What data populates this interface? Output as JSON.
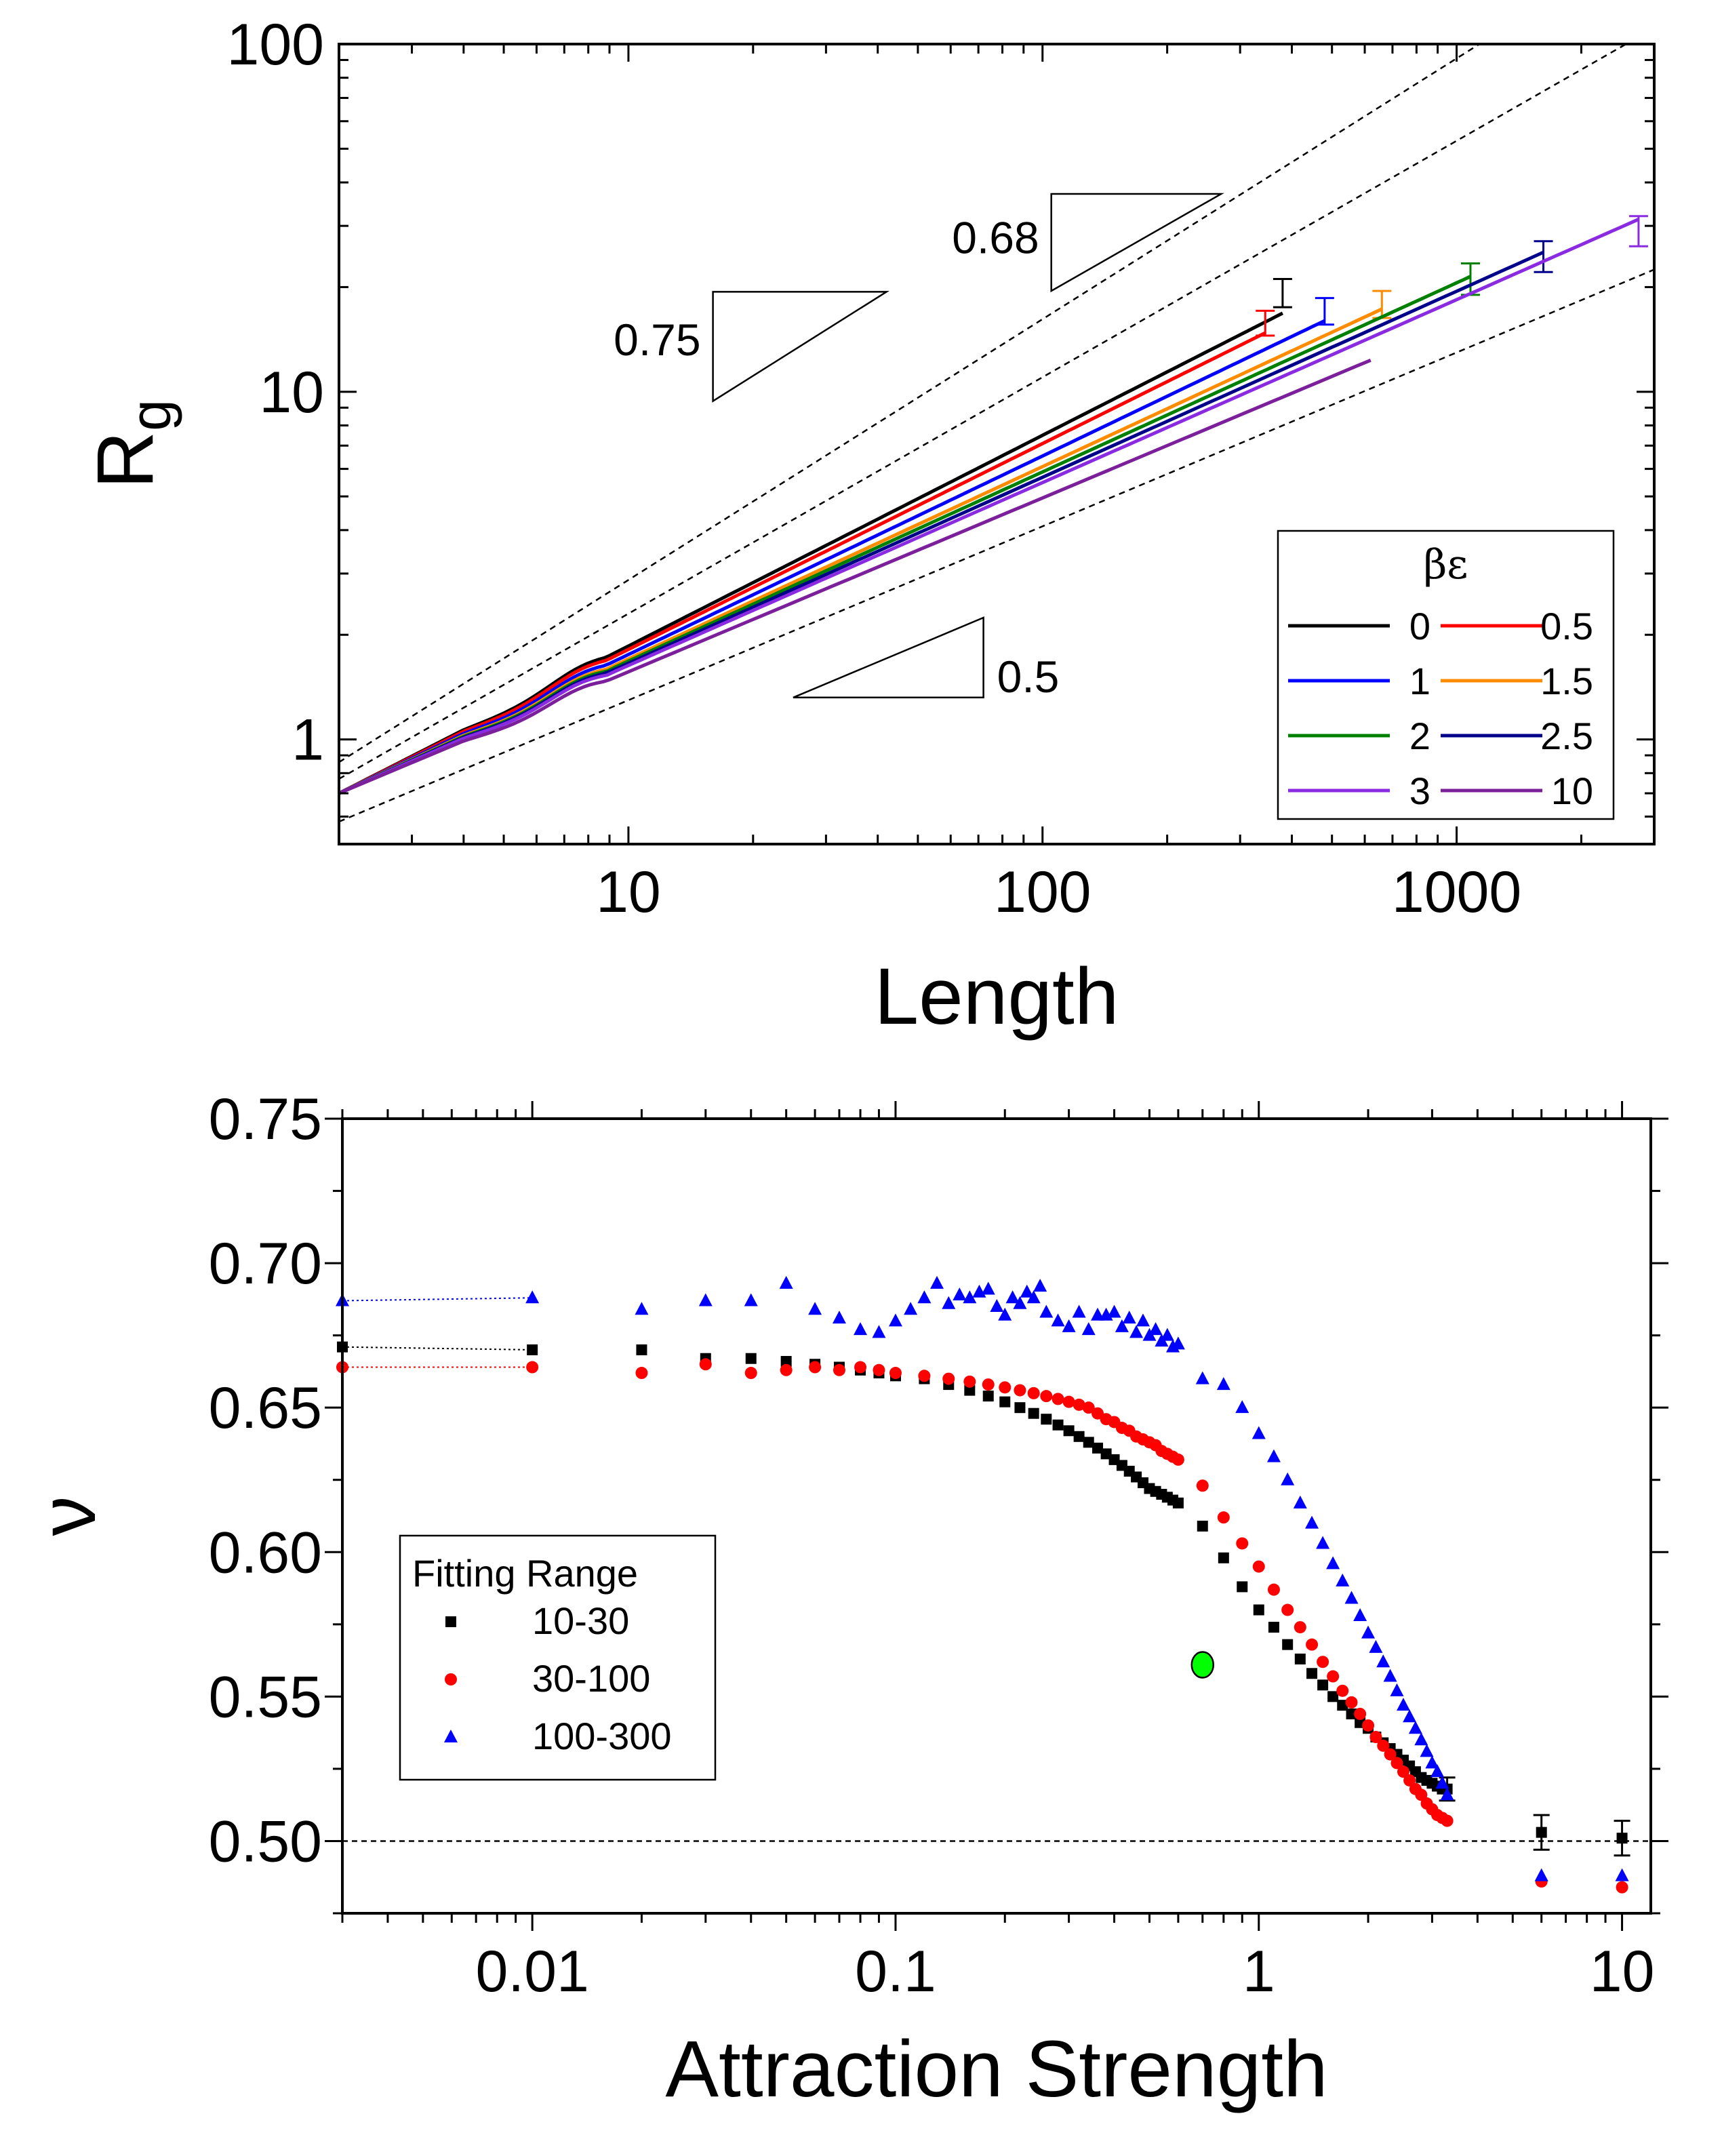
{
  "chart_data": [
    {
      "type": "line",
      "id": "rg-vs-length",
      "title": "",
      "xlabel": "Length",
      "ylabel_main": "R",
      "ylabel_sub": "g",
      "xscale": "log",
      "yscale": "log",
      "xlim": [
        2,
        3000
      ],
      "ylim": [
        0.5,
        100
      ],
      "xticks": [
        {
          "value": 10,
          "label": "10"
        },
        {
          "value": 100,
          "label": "100"
        },
        {
          "value": 1000,
          "label": "1000"
        }
      ],
      "yticks": [
        {
          "value": 1,
          "label": "1"
        },
        {
          "value": 10,
          "label": "10"
        },
        {
          "value": 100,
          "label": "100"
        }
      ],
      "legend": {
        "title": "βε",
        "position": "lower-right",
        "columns": 2
      },
      "series": [
        {
          "name": "0",
          "color": "#000000",
          "x0": 2,
          "y0": 0.7,
          "exponent": 0.606,
          "xmax": 380,
          "ex": 380,
          "ey": 19.3,
          "err": 1.8
        },
        {
          "name": "0.5",
          "color": "#ff0000",
          "x0": 2,
          "y0": 0.7,
          "exponent": 0.592,
          "xmax": 345,
          "ex": 345,
          "ey": 15.8,
          "err": 1.3
        },
        {
          "name": "1",
          "color": "#0000ff",
          "x0": 2,
          "y0": 0.7,
          "exponent": 0.571,
          "xmax": 480,
          "ex": 480,
          "ey": 17.1,
          "err": 1.5
        },
        {
          "name": "1.5",
          "color": "#ff8c00",
          "x0": 2,
          "y0": 0.7,
          "exponent": 0.553,
          "xmax": 660,
          "ex": 660,
          "ey": 17.9,
          "err": 1.6
        },
        {
          "name": "2",
          "color": "#008000",
          "x0": 2,
          "y0": 0.7,
          "exponent": 0.544,
          "xmax": 1080,
          "ex": 1080,
          "ey": 21.2,
          "err": 2.2
        },
        {
          "name": "2.5",
          "color": "#00008b",
          "x0": 2,
          "y0": 0.7,
          "exponent": 0.535,
          "xmax": 1620,
          "ex": 1620,
          "ey": 24.6,
          "err": 2.5
        },
        {
          "name": "3",
          "color": "#8a2be2",
          "x0": 2,
          "y0": 0.7,
          "exponent": 0.526,
          "xmax": 2750,
          "ex": 2750,
          "ey": 29.1,
          "err": 2.9
        },
        {
          "name": "10",
          "color": "#7b1f9b",
          "x0": 2,
          "y0": 0.7,
          "exponent": 0.5,
          "xmax": 620,
          "ex": null,
          "ey": null,
          "err": null
        }
      ],
      "reference_lines": [
        {
          "exponent": 0.75,
          "x0": 2,
          "y0": 0.86
        },
        {
          "exponent": 0.68,
          "x0": 2,
          "y0": 0.77
        },
        {
          "exponent": 0.5,
          "x0": 2,
          "y0": 0.58
        }
      ],
      "slope_triangles": [
        {
          "label": "0.75",
          "exponent": 0.75,
          "x_left": 16,
          "x_right": 42,
          "y_base": 9.4,
          "vertical": "left",
          "label_side": "left"
        },
        {
          "label": "0.68",
          "exponent": 0.68,
          "x_left": 105,
          "x_right": 270,
          "y_base": 19.5,
          "vertical": "left",
          "label_side": "left"
        },
        {
          "label": "0.5",
          "exponent": 0.5,
          "x_left": 25,
          "x_right": 72,
          "y_base": 1.32,
          "vertical": "right",
          "label_side": "right"
        }
      ]
    },
    {
      "type": "scatter",
      "id": "nu-vs-attraction",
      "title": "",
      "xlabel": "Attraction Strength",
      "ylabel": "ν",
      "xscale": "log",
      "yscale": "linear",
      "xlim": [
        0.003,
        12
      ],
      "ylim": [
        0.475,
        0.75
      ],
      "xticks": [
        {
          "value": 0.01,
          "label": "0.01"
        },
        {
          "value": 0.1,
          "label": "0.1"
        },
        {
          "value": 1,
          "label": "1"
        },
        {
          "value": 10,
          "label": "10"
        }
      ],
      "yticks": [
        {
          "value": 0.5,
          "label": "0.50"
        },
        {
          "value": 0.55,
          "label": "0.55"
        },
        {
          "value": 0.6,
          "label": "0.60"
        },
        {
          "value": 0.65,
          "label": "0.65"
        },
        {
          "value": 0.7,
          "label": "0.70"
        },
        {
          "value": 0.75,
          "label": "0.75"
        }
      ],
      "reference_hline": 0.5,
      "legend": {
        "title": "Fitting Range",
        "position": "lower-left"
      },
      "series": [
        {
          "name": "10-30",
          "marker": "square",
          "color": "#000000",
          "x": [
            0.003,
            0.01,
            0.02,
            0.03,
            0.04,
            0.05,
            0.06,
            0.07,
            0.08,
            0.09,
            0.1,
            0.12,
            0.14,
            0.16,
            0.18,
            0.2,
            0.22,
            0.24,
            0.26,
            0.28,
            0.3,
            0.32,
            0.34,
            0.36,
            0.38,
            0.4,
            0.42,
            0.44,
            0.46,
            0.48,
            0.5,
            0.52,
            0.54,
            0.56,
            0.58,
            0.6,
            0.7,
            0.8,
            0.9,
            1.0,
            1.1,
            1.2,
            1.3,
            1.4,
            1.5,
            1.6,
            1.7,
            1.8,
            1.9,
            2.0,
            2.1,
            2.2,
            2.3,
            2.4,
            2.5,
            2.6,
            2.7,
            2.8,
            2.9,
            3.0,
            3.1,
            3.2,
            3.3,
            6.0,
            10.0
          ],
          "y": [
            0.671,
            0.67,
            0.67,
            0.667,
            0.667,
            0.666,
            0.665,
            0.664,
            0.663,
            0.662,
            0.661,
            0.66,
            0.658,
            0.656,
            0.654,
            0.652,
            0.65,
            0.648,
            0.646,
            0.644,
            0.642,
            0.64,
            0.638,
            0.636,
            0.634,
            0.632,
            0.63,
            0.628,
            0.626,
            0.624,
            0.622,
            0.621,
            0.62,
            0.619,
            0.618,
            0.617,
            0.609,
            0.598,
            0.588,
            0.58,
            0.574,
            0.568,
            0.563,
            0.558,
            0.554,
            0.55,
            0.547,
            0.544,
            0.541,
            0.539,
            0.536,
            0.534,
            0.532,
            0.53,
            0.528,
            0.526,
            0.524,
            0.522,
            0.521,
            0.52,
            0.519,
            0.518,
            0.518,
            0.503,
            0.501
          ],
          "err_points": [
            {
              "x": 6.0,
              "y": 0.503,
              "err": 0.006
            },
            {
              "x": 10.0,
              "y": 0.501,
              "err": 0.006
            },
            {
              "x": 3.3,
              "y": 0.518,
              "err": 0.004
            }
          ],
          "extrapolation_color": "#000000"
        },
        {
          "name": "30-100",
          "marker": "circle",
          "color": "#ff0000",
          "x": [
            0.003,
            0.01,
            0.02,
            0.03,
            0.04,
            0.05,
            0.06,
            0.07,
            0.08,
            0.09,
            0.1,
            0.12,
            0.14,
            0.16,
            0.18,
            0.2,
            0.22,
            0.24,
            0.26,
            0.28,
            0.3,
            0.32,
            0.34,
            0.36,
            0.38,
            0.4,
            0.42,
            0.44,
            0.46,
            0.48,
            0.5,
            0.52,
            0.54,
            0.56,
            0.58,
            0.6,
            0.7,
            0.8,
            0.9,
            1.0,
            1.1,
            1.2,
            1.3,
            1.4,
            1.5,
            1.6,
            1.7,
            1.8,
            1.9,
            2.0,
            2.1,
            2.2,
            2.3,
            2.4,
            2.5,
            2.6,
            2.7,
            2.8,
            2.9,
            3.0,
            3.1,
            3.2,
            3.3,
            6.0,
            10.0
          ],
          "y": [
            0.664,
            0.664,
            0.662,
            0.665,
            0.662,
            0.663,
            0.664,
            0.663,
            0.664,
            0.663,
            0.662,
            0.661,
            0.66,
            0.659,
            0.658,
            0.657,
            0.656,
            0.655,
            0.654,
            0.653,
            0.652,
            0.651,
            0.65,
            0.648,
            0.646,
            0.645,
            0.643,
            0.642,
            0.64,
            0.639,
            0.638,
            0.637,
            0.635,
            0.634,
            0.633,
            0.632,
            0.623,
            0.612,
            0.603,
            0.595,
            0.587,
            0.58,
            0.574,
            0.568,
            0.562,
            0.557,
            0.552,
            0.548,
            0.544,
            0.54,
            0.536,
            0.533,
            0.53,
            0.527,
            0.524,
            0.521,
            0.518,
            0.516,
            0.513,
            0.511,
            0.509,
            0.508,
            0.507,
            0.486,
            0.484
          ],
          "err_points": [],
          "extrapolation_color": "#ff0000"
        },
        {
          "name": "100-300",
          "marker": "triangle",
          "color": "#0000ff",
          "x": [
            0.003,
            0.01,
            0.02,
            0.03,
            0.04,
            0.05,
            0.06,
            0.07,
            0.08,
            0.09,
            0.1,
            0.11,
            0.12,
            0.13,
            0.14,
            0.15,
            0.16,
            0.17,
            0.18,
            0.19,
            0.2,
            0.21,
            0.22,
            0.23,
            0.24,
            0.25,
            0.26,
            0.28,
            0.3,
            0.32,
            0.34,
            0.36,
            0.38,
            0.4,
            0.42,
            0.44,
            0.46,
            0.48,
            0.5,
            0.52,
            0.54,
            0.56,
            0.58,
            0.6,
            0.7,
            0.8,
            0.9,
            1.0,
            1.1,
            1.2,
            1.3,
            1.4,
            1.5,
            1.6,
            1.7,
            1.8,
            1.9,
            2.0,
            2.1,
            2.2,
            2.3,
            2.4,
            2.5,
            2.6,
            2.7,
            2.8,
            2.9,
            3.0,
            3.1,
            3.2,
            3.3,
            6.0,
            10.0
          ],
          "y": [
            0.687,
            0.688,
            0.684,
            0.687,
            0.687,
            0.693,
            0.684,
            0.681,
            0.677,
            0.676,
            0.68,
            0.684,
            0.688,
            0.693,
            0.686,
            0.689,
            0.688,
            0.69,
            0.691,
            0.685,
            0.682,
            0.688,
            0.686,
            0.69,
            0.688,
            0.692,
            0.683,
            0.68,
            0.678,
            0.683,
            0.677,
            0.682,
            0.682,
            0.683,
            0.678,
            0.681,
            0.676,
            0.68,
            0.675,
            0.677,
            0.673,
            0.675,
            0.671,
            0.672,
            0.66,
            0.658,
            0.65,
            0.641,
            0.633,
            0.625,
            0.617,
            0.61,
            0.603,
            0.596,
            0.59,
            0.584,
            0.578,
            0.572,
            0.567,
            0.562,
            0.557,
            0.552,
            0.547,
            0.543,
            0.539,
            0.535,
            0.531,
            0.527,
            0.524,
            0.52,
            0.516,
            0.488,
            0.488
          ],
          "err_points": [],
          "extrapolation_color": "#0000ff"
        },
        {
          "name": "highlight",
          "marker": "ellipse",
          "color": "#00ff00",
          "x": [
            0.7
          ],
          "y": [
            0.561
          ],
          "err_points": [],
          "in_legend": false
        }
      ]
    }
  ]
}
